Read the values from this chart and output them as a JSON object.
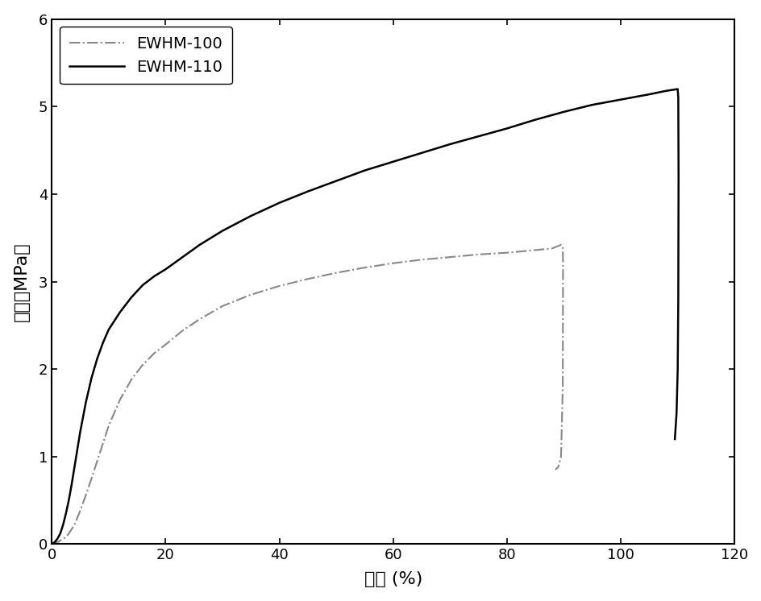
{
  "title": "",
  "xlabel": "应变 (%)",
  "ylabel": "应力（MPa）",
  "xlim": [
    0,
    120
  ],
  "ylim": [
    0,
    6
  ],
  "xticks": [
    0,
    20,
    40,
    60,
    80,
    100,
    120
  ],
  "yticks": [
    0,
    1,
    2,
    3,
    4,
    5,
    6
  ],
  "background_color": "#ffffff",
  "line_color_100": "#888888",
  "line_color_110": "#000000",
  "legend_labels": [
    "EWHM-100",
    "EWHM-110"
  ],
  "ewhm100_x": [
    0,
    0.5,
    1,
    1.5,
    2,
    2.5,
    3,
    3.5,
    4,
    4.5,
    5,
    6,
    7,
    8,
    9,
    10,
    12,
    14,
    16,
    18,
    20,
    23,
    26,
    30,
    35,
    40,
    45,
    50,
    55,
    60,
    65,
    70,
    75,
    80,
    85,
    88,
    89.5,
    89.8,
    89.85,
    89.8,
    89.5,
    89.0,
    88.5
  ],
  "ewhm100_y": [
    0,
    0.01,
    0.02,
    0.04,
    0.06,
    0.08,
    0.12,
    0.17,
    0.22,
    0.3,
    0.38,
    0.56,
    0.75,
    0.95,
    1.15,
    1.35,
    1.65,
    1.88,
    2.05,
    2.18,
    2.28,
    2.44,
    2.57,
    2.72,
    2.85,
    2.95,
    3.03,
    3.1,
    3.16,
    3.21,
    3.25,
    3.28,
    3.31,
    3.33,
    3.36,
    3.38,
    3.42,
    3.4,
    3.2,
    1.8,
    1.0,
    0.88,
    0.85
  ],
  "ewhm110_x": [
    0,
    0.5,
    1,
    1.5,
    2,
    2.5,
    3,
    3.5,
    4,
    4.5,
    5,
    6,
    7,
    8,
    9,
    10,
    12,
    14,
    16,
    18,
    20,
    23,
    26,
    30,
    35,
    40,
    45,
    50,
    55,
    60,
    65,
    70,
    75,
    80,
    85,
    90,
    95,
    100,
    105,
    108,
    110,
    110.1,
    110.15,
    110.1,
    110.0,
    109.8,
    109.5
  ],
  "ewhm110_y": [
    0,
    0.02,
    0.06,
    0.12,
    0.22,
    0.35,
    0.5,
    0.68,
    0.88,
    1.08,
    1.28,
    1.62,
    1.9,
    2.12,
    2.3,
    2.45,
    2.65,
    2.82,
    2.96,
    3.06,
    3.14,
    3.28,
    3.42,
    3.58,
    3.75,
    3.9,
    4.03,
    4.15,
    4.27,
    4.37,
    4.47,
    4.57,
    4.66,
    4.75,
    4.85,
    4.94,
    5.02,
    5.08,
    5.14,
    5.18,
    5.2,
    5.1,
    4.2,
    2.8,
    2.0,
    1.5,
    1.2
  ]
}
